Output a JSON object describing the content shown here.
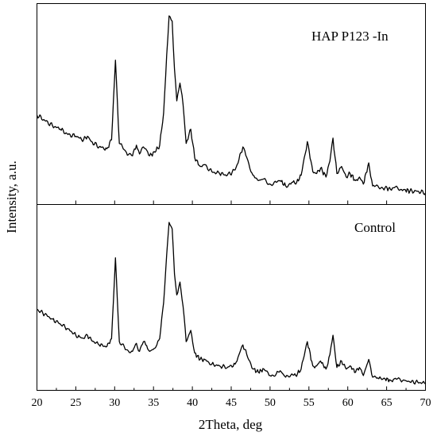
{
  "chart_data": {
    "type": "line",
    "xlabel": "2Theta, deg",
    "ylabel": "Intensity, a.u.",
    "xlim": [
      20,
      70
    ],
    "xticks": [
      20,
      25,
      30,
      35,
      40,
      45,
      50,
      55,
      60,
      65,
      70
    ],
    "grid": false,
    "series": [
      {
        "name": "HAP P123 -In",
        "x": [
          20,
          21,
          22,
          23,
          24,
          25,
          25.5,
          26,
          26.5,
          27,
          28,
          29,
          29.6,
          30.1,
          30.6,
          31.5,
          32.3,
          32.8,
          33.2,
          33.7,
          34.0,
          34.5,
          35.2,
          35.8,
          36.3,
          36.7,
          37.0,
          37.4,
          37.7,
          38.0,
          38.4,
          38.8,
          39.2,
          39.8,
          40.3,
          41.0,
          41.6,
          42.5,
          43.5,
          44.5,
          45.5,
          46.0,
          46.5,
          47.0,
          47.8,
          48.5,
          49.2,
          50.0,
          50.8,
          51.3,
          52.0,
          52.8,
          53.3,
          54.0,
          54.8,
          55.5,
          56.0,
          56.5,
          57.2,
          57.7,
          58.1,
          58.6,
          59.2,
          59.8,
          60.3,
          61.0,
          61.5,
          62.0,
          62.7,
          63.2,
          64.0,
          64.8,
          65.5,
          66.0,
          66.8,
          67.3,
          68.0,
          69.0,
          70.0
        ],
        "y": [
          0.44,
          0.41,
          0.38,
          0.36,
          0.33,
          0.32,
          0.31,
          0.3,
          0.32,
          0.29,
          0.26,
          0.25,
          0.3,
          0.75,
          0.28,
          0.23,
          0.21,
          0.27,
          0.22,
          0.26,
          0.25,
          0.21,
          0.23,
          0.27,
          0.45,
          0.78,
          1.0,
          0.97,
          0.7,
          0.52,
          0.62,
          0.5,
          0.28,
          0.36,
          0.2,
          0.15,
          0.16,
          0.12,
          0.11,
          0.1,
          0.13,
          0.19,
          0.26,
          0.2,
          0.1,
          0.07,
          0.08,
          0.05,
          0.06,
          0.07,
          0.04,
          0.06,
          0.05,
          0.1,
          0.29,
          0.12,
          0.11,
          0.14,
          0.09,
          0.18,
          0.31,
          0.11,
          0.15,
          0.09,
          0.11,
          0.07,
          0.09,
          0.05,
          0.17,
          0.04,
          0.03,
          0.03,
          0.02,
          0.03,
          0.02,
          0.02,
          0.01,
          0.01,
          0.0
        ]
      },
      {
        "name": "Control",
        "x": [
          20,
          21,
          22,
          23,
          24,
          25,
          25.5,
          26,
          26.5,
          27,
          28,
          29,
          29.6,
          30.1,
          30.6,
          31.5,
          32.3,
          32.8,
          33.2,
          33.7,
          34.0,
          34.5,
          35.2,
          35.8,
          36.3,
          36.7,
          37.0,
          37.4,
          37.7,
          38.0,
          38.4,
          38.8,
          39.2,
          39.8,
          40.3,
          41.0,
          41.6,
          42.5,
          43.5,
          44.5,
          45.5,
          46.0,
          46.5,
          47.0,
          47.8,
          48.5,
          49.2,
          50.0,
          50.8,
          51.3,
          52.0,
          52.8,
          53.3,
          54.0,
          54.8,
          55.5,
          56.0,
          56.5,
          57.2,
          57.7,
          58.1,
          58.6,
          59.2,
          59.8,
          60.3,
          61.0,
          61.5,
          62.0,
          62.7,
          63.2,
          64.0,
          64.8,
          65.5,
          66.0,
          66.8,
          67.3,
          68.0,
          69.0,
          70.0
        ],
        "y": [
          0.46,
          0.43,
          0.4,
          0.37,
          0.34,
          0.3,
          0.29,
          0.28,
          0.3,
          0.27,
          0.24,
          0.23,
          0.28,
          0.78,
          0.26,
          0.21,
          0.2,
          0.25,
          0.2,
          0.26,
          0.24,
          0.2,
          0.22,
          0.28,
          0.5,
          0.8,
          1.0,
          0.96,
          0.68,
          0.55,
          0.63,
          0.48,
          0.26,
          0.33,
          0.19,
          0.15,
          0.15,
          0.12,
          0.11,
          0.1,
          0.12,
          0.18,
          0.24,
          0.18,
          0.09,
          0.07,
          0.09,
          0.05,
          0.06,
          0.08,
          0.04,
          0.06,
          0.05,
          0.09,
          0.26,
          0.11,
          0.11,
          0.14,
          0.09,
          0.18,
          0.3,
          0.1,
          0.14,
          0.09,
          0.11,
          0.07,
          0.1,
          0.05,
          0.15,
          0.04,
          0.03,
          0.03,
          0.02,
          0.03,
          0.02,
          0.02,
          0.01,
          0.01,
          0.0
        ]
      }
    ]
  }
}
